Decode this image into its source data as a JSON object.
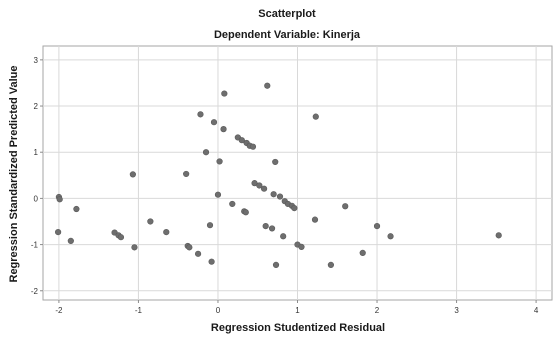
{
  "chart_data": {
    "type": "scatter",
    "title": "Scatterplot",
    "subtitle": "Dependent Variable: Kinerja",
    "xlabel": "Regression Studentized Residual",
    "ylabel": "Regression Standardized Predicted Value",
    "xlim": [
      -2.2,
      4.2
    ],
    "ylim": [
      -2.2,
      3.3
    ],
    "xticks": [
      "-2",
      "-1",
      "0",
      "1",
      "2",
      "3",
      "4"
    ],
    "yticks": [
      "-2",
      "-1",
      "0",
      "1",
      "2",
      "3"
    ],
    "xtick_values": [
      -2,
      -1,
      0,
      1,
      2,
      3,
      4
    ],
    "ytick_values": [
      -2,
      -1,
      0,
      1,
      2,
      3
    ],
    "grid": true,
    "point_color": "#6e6e6e",
    "points": [
      {
        "x": -2.0,
        "y": 0.03
      },
      {
        "x": -1.99,
        "y": -0.02
      },
      {
        "x": -2.01,
        "y": -0.73
      },
      {
        "x": -1.85,
        "y": -0.92
      },
      {
        "x": -1.78,
        "y": -0.23
      },
      {
        "x": -1.3,
        "y": -0.74
      },
      {
        "x": -1.25,
        "y": -0.8
      },
      {
        "x": -1.22,
        "y": -0.84
      },
      {
        "x": -1.07,
        "y": 0.52
      },
      {
        "x": -1.05,
        "y": -1.06
      },
      {
        "x": -0.85,
        "y": -0.5
      },
      {
        "x": -0.65,
        "y": -0.73
      },
      {
        "x": -0.4,
        "y": 0.53
      },
      {
        "x": -0.38,
        "y": -1.03
      },
      {
        "x": -0.36,
        "y": -1.06
      },
      {
        "x": -0.25,
        "y": -1.2
      },
      {
        "x": -0.22,
        "y": 1.82
      },
      {
        "x": -0.15,
        "y": 1.0
      },
      {
        "x": -0.1,
        "y": -0.58
      },
      {
        "x": -0.08,
        "y": -1.37
      },
      {
        "x": -0.05,
        "y": 1.65
      },
      {
        "x": 0.0,
        "y": 0.08
      },
      {
        "x": 0.02,
        "y": 0.8
      },
      {
        "x": 0.07,
        "y": 1.5
      },
      {
        "x": 0.08,
        "y": 2.27
      },
      {
        "x": 0.18,
        "y": -0.12
      },
      {
        "x": 0.25,
        "y": 1.32
      },
      {
        "x": 0.3,
        "y": 1.26
      },
      {
        "x": 0.33,
        "y": -0.28
      },
      {
        "x": 0.35,
        "y": -0.3
      },
      {
        "x": 0.36,
        "y": 1.2
      },
      {
        "x": 0.4,
        "y": 1.14
      },
      {
        "x": 0.44,
        "y": 1.12
      },
      {
        "x": 0.46,
        "y": 0.33
      },
      {
        "x": 0.52,
        "y": 0.28
      },
      {
        "x": 0.58,
        "y": 0.21
      },
      {
        "x": 0.6,
        "y": -0.6
      },
      {
        "x": 0.62,
        "y": 2.44
      },
      {
        "x": 0.68,
        "y": -0.65
      },
      {
        "x": 0.7,
        "y": 0.09
      },
      {
        "x": 0.72,
        "y": 0.79
      },
      {
        "x": 0.73,
        "y": -1.44
      },
      {
        "x": 0.78,
        "y": 0.04
      },
      {
        "x": 0.82,
        "y": -0.82
      },
      {
        "x": 0.84,
        "y": -0.06
      },
      {
        "x": 0.88,
        "y": -0.12
      },
      {
        "x": 0.93,
        "y": -0.16
      },
      {
        "x": 0.96,
        "y": -0.21
      },
      {
        "x": 1.0,
        "y": -1.0
      },
      {
        "x": 1.05,
        "y": -1.05
      },
      {
        "x": 1.22,
        "y": -0.46
      },
      {
        "x": 1.23,
        "y": 1.77
      },
      {
        "x": 1.42,
        "y": -1.44
      },
      {
        "x": 1.6,
        "y": -0.17
      },
      {
        "x": 1.82,
        "y": -1.18
      },
      {
        "x": 2.0,
        "y": -0.6
      },
      {
        "x": 2.17,
        "y": -0.82
      },
      {
        "x": 3.53,
        "y": -0.8
      }
    ]
  }
}
